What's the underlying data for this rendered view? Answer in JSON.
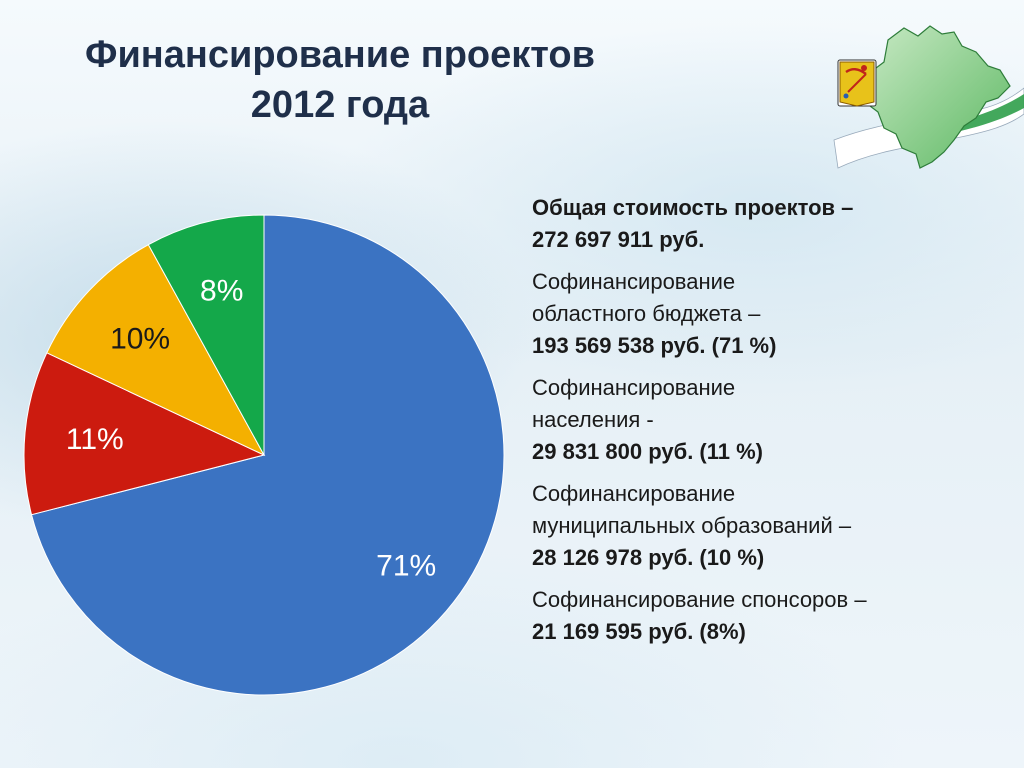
{
  "title": {
    "line1": "Финансирование проектов",
    "line2": "2012 года"
  },
  "colors": {
    "title": "#1f2f4a",
    "blue": "#3b73c2",
    "red": "#cc1b0f",
    "yellow": "#f4b000",
    "green": "#14a84a"
  },
  "emblem": {
    "icon": "kirov-region-map-and-coat-of-arms-icon"
  },
  "info": {
    "total_label": "Общая стоимость проектов –",
    "total_value": "272 697 911 руб.",
    "items": [
      {
        "label1": "Софинансирование",
        "label2": "областного бюджета –",
        "value": "193 569 538 руб. (71 %)"
      },
      {
        "label1": "Софинансирование",
        "label2": "населения -",
        "value": "29 831 800 руб. (11 %)"
      },
      {
        "label1": "Софинансирование",
        "label2": "муниципальных образований –",
        "value": "28 126 978 руб. (10 %)"
      },
      {
        "label1": "Софинансирование спонсоров –",
        "label2": "",
        "value": "21 169 595 руб. (8%)"
      }
    ]
  },
  "chart_data": {
    "type": "pie",
    "start_angle": "12 o'clock, clockwise",
    "slices": [
      {
        "label": "71%",
        "value": 71,
        "color": "#3b73c2",
        "label_color": "#ffffff"
      },
      {
        "label": "11%",
        "value": 11,
        "color": "#cc1b0f",
        "label_color": "#ffffff"
      },
      {
        "label": "10%",
        "value": 10,
        "color": "#f4b000",
        "label_color": "#1a1a1a"
      },
      {
        "label": "8%",
        "value": 8,
        "color": "#14a84a",
        "label_color": "#ffffff"
      }
    ]
  }
}
